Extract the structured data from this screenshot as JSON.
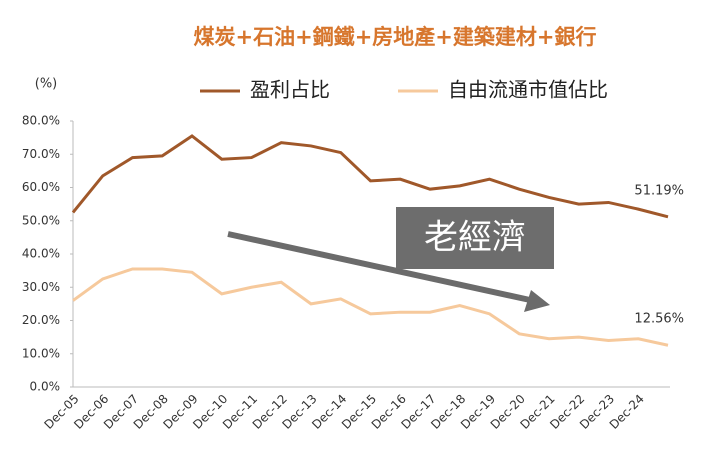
{
  "chart_data": {
    "type": "line",
    "title": "煤炭+石油+鋼鐵+房地產+建築建材+銀行",
    "y_label": "(%)",
    "annotations": [
      "老經濟"
    ],
    "categories": [
      "Dec-05",
      "Dec-06",
      "Dec-07",
      "Dec-08",
      "Dec-09",
      "Dec-10",
      "Dec-11",
      "Dec-12",
      "Dec-13",
      "Dec-14",
      "Dec-15",
      "Dec-16",
      "Dec-17",
      "Dec-18",
      "Dec-19",
      "Dec-20",
      "Dec-21",
      "Dec-22",
      "Dec-23",
      "Dec-24",
      null
    ],
    "series": [
      {
        "name": "盈利占比",
        "color": "#a0582a",
        "values": [
          52.5,
          63.5,
          69,
          69.5,
          75.5,
          68.5,
          69,
          73.5,
          72.5,
          70.5,
          62,
          62.5,
          59.5,
          60.5,
          62.5,
          59.5,
          57,
          55,
          55.5,
          53.5,
          51.19
        ],
        "value_labels": [
          null,
          null,
          null,
          null,
          null,
          null,
          null,
          null,
          null,
          null,
          null,
          null,
          null,
          null,
          null,
          null,
          null,
          null,
          null,
          null,
          "51.19%"
        ]
      },
      {
        "name": "自由流通市值佔比",
        "color": "#f6c99c",
        "values": [
          26,
          32.5,
          35.5,
          35.5,
          34.5,
          28,
          30,
          31.5,
          25,
          26.5,
          22,
          22.5,
          22.5,
          24.5,
          22,
          16,
          14.5,
          15,
          14,
          14.5,
          12.56
        ],
        "value_labels": [
          null,
          null,
          null,
          null,
          null,
          null,
          null,
          null,
          null,
          null,
          null,
          null,
          null,
          null,
          null,
          null,
          null,
          null,
          null,
          null,
          "12.56%"
        ]
      }
    ],
    "ylim": [
      0,
      80
    ],
    "yticks": [
      {
        "value": 0,
        "label": "0.0%"
      },
      {
        "value": 10,
        "label": "10.0%"
      },
      {
        "value": 20,
        "label": "20.0%"
      },
      {
        "value": 30,
        "label": "30.0%"
      },
      {
        "value": 40,
        "label": "40.0%"
      },
      {
        "value": 50,
        "label": "50.0%"
      },
      {
        "value": 60,
        "label": "60.0%"
      },
      {
        "value": 70,
        "label": "70.0%"
      },
      {
        "value": 80,
        "label": "80.0%"
      }
    ],
    "grid": false
  }
}
